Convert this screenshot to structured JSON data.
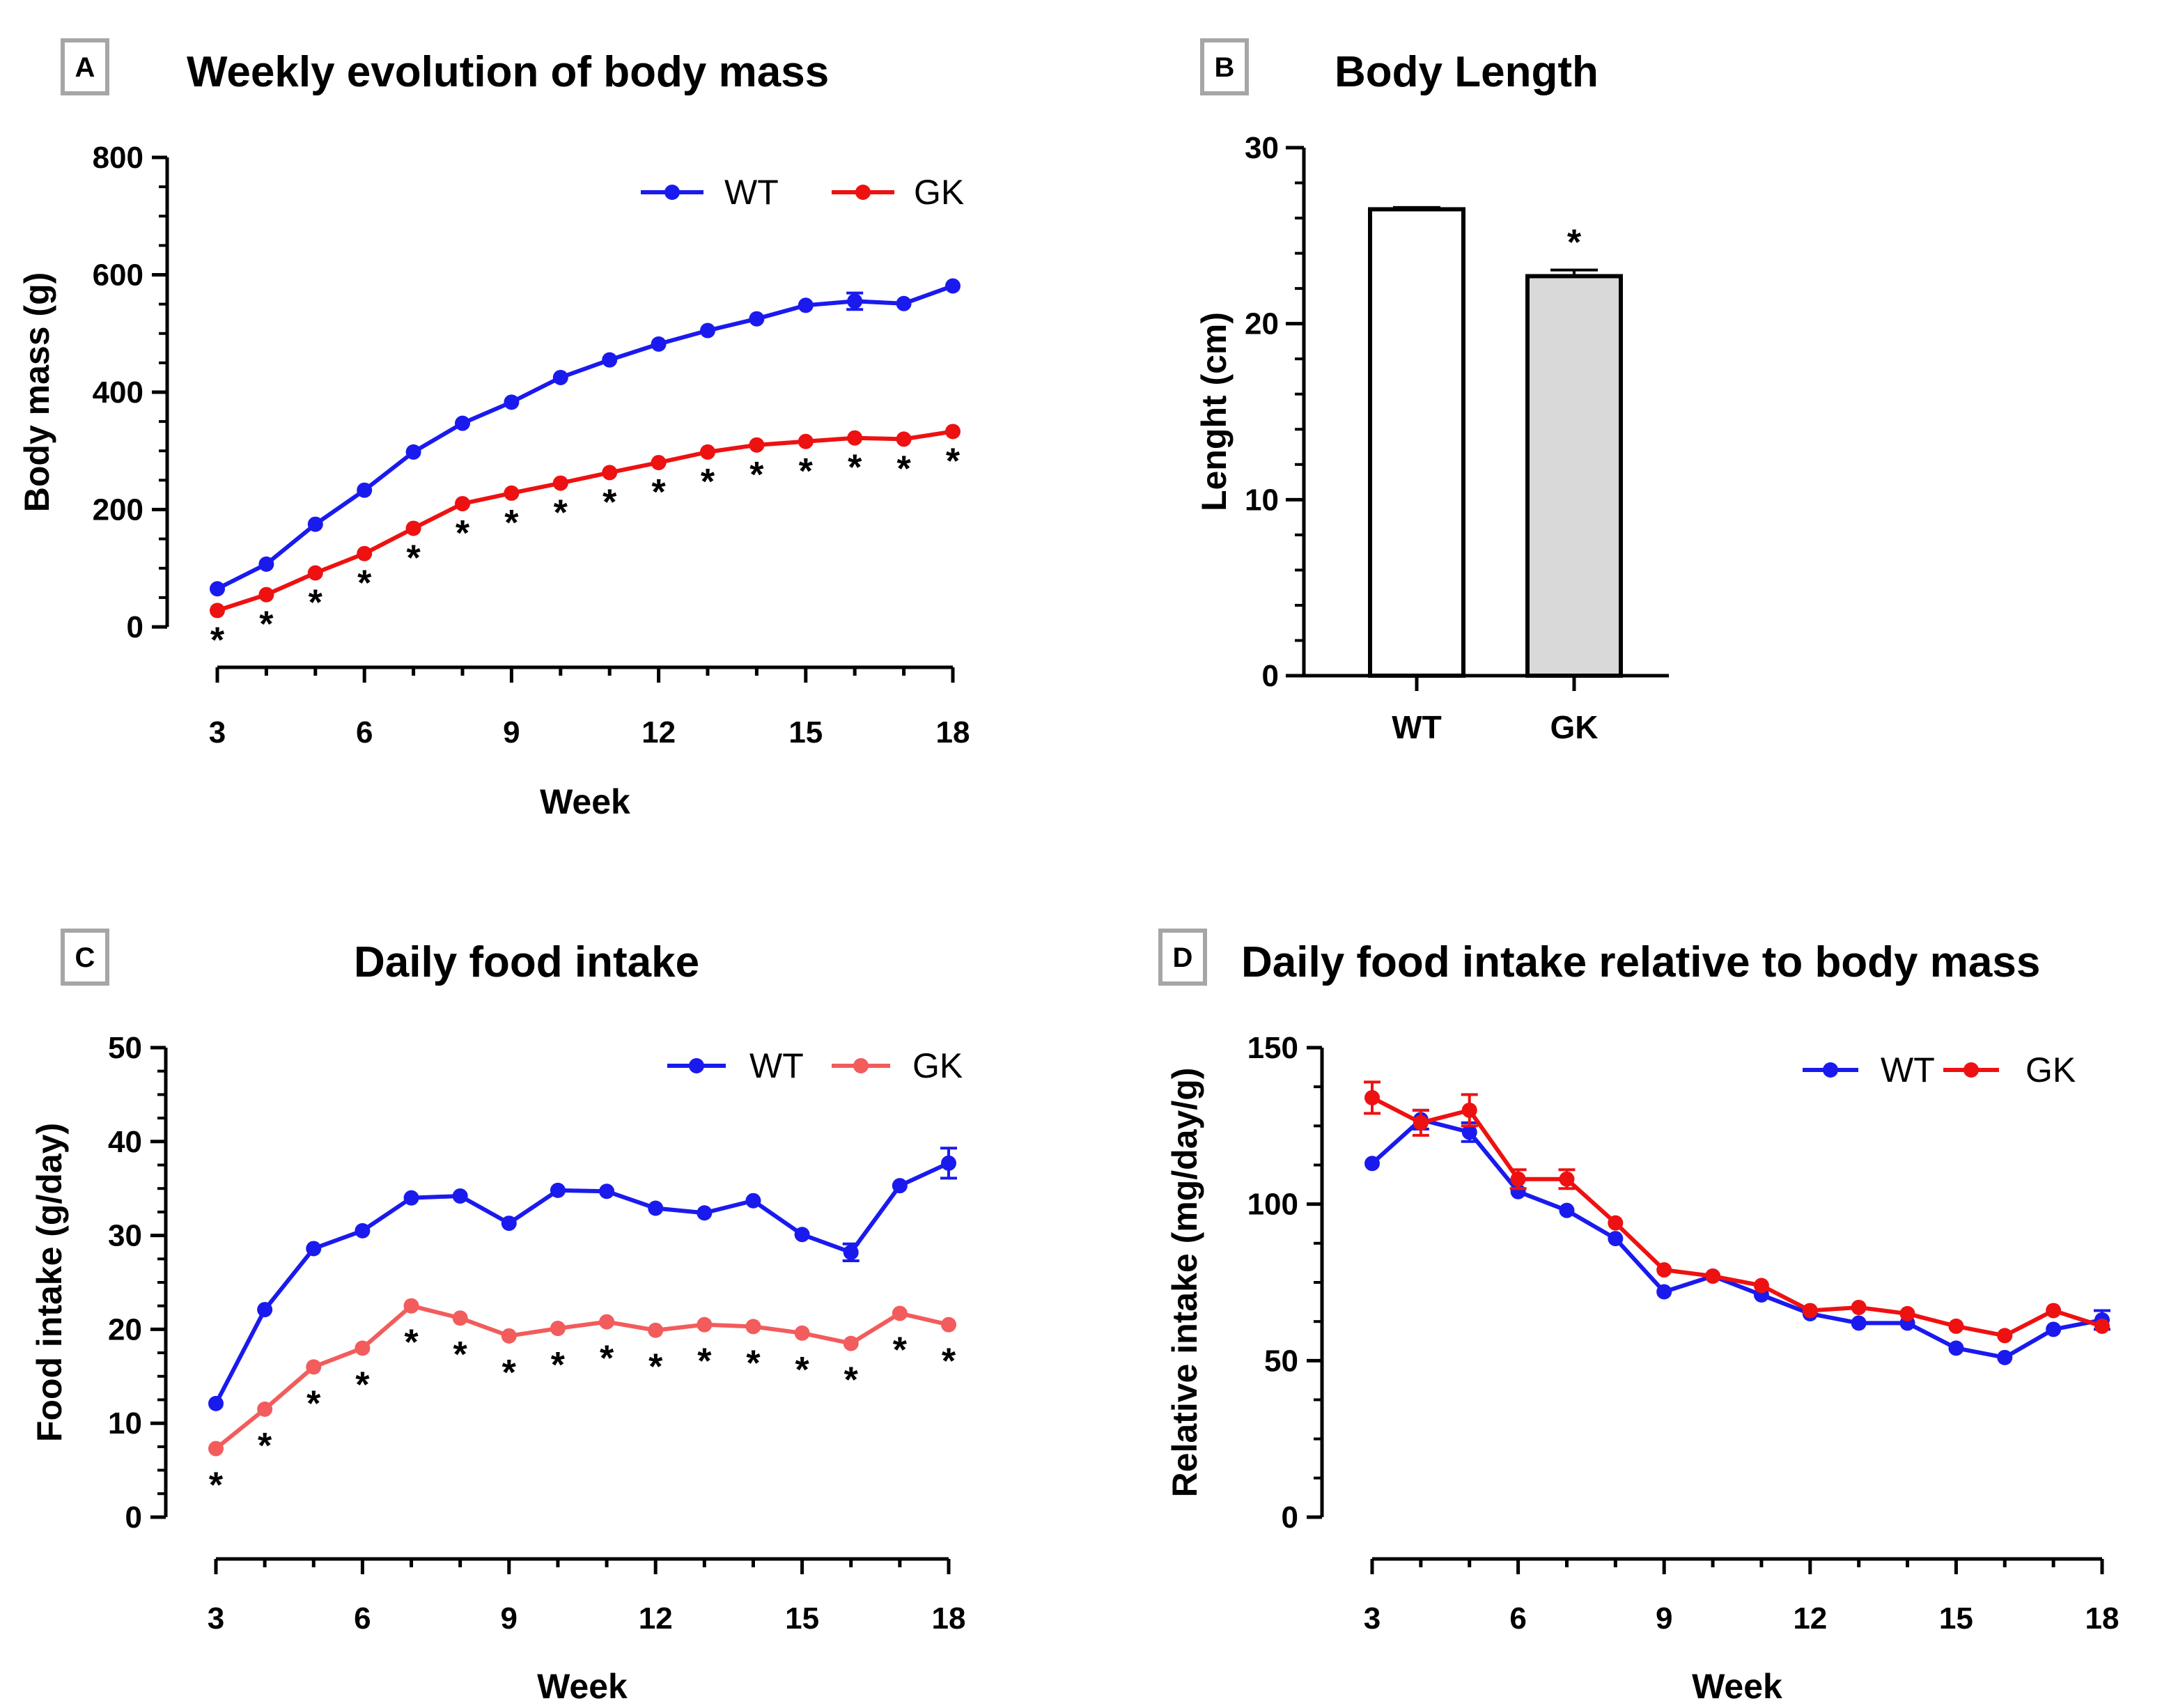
{
  "colors": {
    "wt": "#1a1aee",
    "gk": "#ee1111",
    "gk_light": "#f25c5c",
    "bar_gk_fill": "#d9d9d9",
    "box_border": "#a6a6a6"
  },
  "chart_data": [
    {
      "id": "A",
      "panel_label": "A",
      "type": "line",
      "title": "Weekly evolution of body mass",
      "xlabel": "Week",
      "ylabel": "Body mass (g)",
      "xlim": [
        3,
        18
      ],
      "ylim": [
        0,
        800
      ],
      "x_ticks": [
        3,
        6,
        9,
        12,
        15,
        18
      ],
      "y_ticks": [
        0,
        200,
        400,
        600,
        800
      ],
      "legend": "top-right",
      "x": [
        3,
        4,
        5,
        6,
        7,
        8,
        9,
        10,
        11,
        12,
        13,
        14,
        15,
        16,
        17,
        18
      ],
      "series": [
        {
          "name": "WT",
          "color": "#1a1aee",
          "values": [
            65,
            107,
            175,
            233,
            298,
            347,
            383,
            425,
            455,
            482,
            505,
            525,
            548,
            555,
            551,
            581
          ],
          "errors": [
            2,
            3,
            4,
            4,
            5,
            5,
            5,
            6,
            6,
            6,
            6,
            7,
            7,
            14,
            7,
            7
          ]
        },
        {
          "name": "GK",
          "color": "#ee1111",
          "values": [
            28,
            55,
            92,
            125,
            168,
            210,
            228,
            245,
            263,
            280,
            298,
            310,
            316,
            322,
            320,
            333
          ],
          "errors": [
            2,
            2,
            3,
            3,
            4,
            4,
            4,
            5,
            5,
            5,
            5,
            5,
            5,
            5,
            5,
            5
          ]
        }
      ],
      "star_weeks": [
        3,
        4,
        5,
        6,
        7,
        8,
        9,
        10,
        11,
        12,
        13,
        14,
        15,
        16,
        17,
        18
      ],
      "star_symbol": "*"
    },
    {
      "id": "B",
      "panel_label": "B",
      "type": "bar",
      "title": "Body Length",
      "xlabel": "",
      "ylabel": "Lenght (cm)",
      "ylim": [
        0,
        30
      ],
      "y_ticks": [
        0,
        10,
        20,
        30
      ],
      "categories": [
        "WT",
        "GK"
      ],
      "values": [
        26.5,
        22.7
      ],
      "errors": [
        0.1,
        0.35
      ],
      "fills": [
        "#ffffff",
        "#d9d9d9"
      ],
      "stars": [
        "",
        "*"
      ]
    },
    {
      "id": "C",
      "panel_label": "C",
      "type": "line",
      "title": "Daily food intake",
      "xlabel": "Week",
      "ylabel": "Food intake (g/day)",
      "xlim": [
        3,
        18
      ],
      "ylim": [
        0,
        50
      ],
      "x_ticks": [
        3,
        6,
        9,
        12,
        15,
        18
      ],
      "y_ticks": [
        0,
        10,
        20,
        30,
        40,
        50
      ],
      "legend": "top-right",
      "x": [
        3,
        4,
        5,
        6,
        7,
        8,
        9,
        10,
        11,
        12,
        13,
        14,
        15,
        16,
        17,
        18
      ],
      "series": [
        {
          "name": "WT",
          "color": "#1a1aee",
          "values": [
            12.1,
            22.1,
            28.6,
            30.5,
            34.0,
            34.2,
            31.3,
            34.8,
            34.7,
            32.9,
            32.4,
            33.7,
            30.1,
            28.2,
            35.3,
            37.7
          ],
          "errors": [
            0.3,
            0.4,
            0.4,
            0.4,
            0.4,
            0.4,
            0.4,
            0.4,
            0.4,
            0.4,
            0.4,
            0.4,
            0.4,
            0.9,
            0.5,
            1.6
          ]
        },
        {
          "name": "GK",
          "color": "#f25c5c",
          "values": [
            7.3,
            11.5,
            16.0,
            18.0,
            22.5,
            21.2,
            19.3,
            20.1,
            20.8,
            19.9,
            20.5,
            20.3,
            19.6,
            18.5,
            21.7,
            20.5
          ],
          "errors": [
            0.2,
            0.3,
            0.3,
            0.3,
            0.3,
            0.3,
            0.3,
            0.3,
            0.3,
            0.3,
            0.3,
            0.3,
            0.3,
            0.3,
            0.3,
            0.3
          ]
        }
      ],
      "star_weeks": [
        3,
        4,
        5,
        6,
        7,
        8,
        9,
        10,
        11,
        12,
        13,
        14,
        15,
        16,
        17,
        18
      ],
      "star_symbol": "*"
    },
    {
      "id": "D",
      "panel_label": "D",
      "type": "line",
      "title": "Daily food intake relative to body mass",
      "xlabel": "Week",
      "ylabel": "Relative intake (mg/day/g)",
      "xlim": [
        3,
        18
      ],
      "ylim": [
        0,
        150
      ],
      "x_ticks": [
        3,
        6,
        9,
        12,
        15,
        18
      ],
      "y_ticks": [
        0,
        50,
        100,
        150
      ],
      "legend": "top-right",
      "x": [
        3,
        4,
        5,
        6,
        7,
        8,
        9,
        10,
        11,
        12,
        13,
        14,
        15,
        16,
        17,
        18
      ],
      "series": [
        {
          "name": "WT",
          "color": "#1a1aee",
          "values": [
            113,
            127,
            123,
            104,
            98,
            89,
            72,
            77,
            71,
            65,
            62,
            62,
            54,
            51,
            60,
            63
          ],
          "errors": [
            1.5,
            3,
            3,
            1.5,
            1.5,
            1.5,
            1.5,
            1.5,
            1.5,
            1.5,
            1.5,
            1.5,
            1.5,
            1.5,
            1.5,
            3
          ]
        },
        {
          "name": "GK",
          "color": "#ee1111",
          "values": [
            134,
            126,
            130,
            108,
            108,
            94,
            79,
            77,
            74,
            66,
            67,
            65,
            61,
            58,
            66,
            61
          ],
          "errors": [
            5,
            4,
            5,
            3,
            3,
            2,
            2,
            2,
            2,
            2,
            2,
            2,
            2,
            2,
            2,
            2
          ]
        }
      ],
      "star_weeks": [],
      "star_symbol": "*"
    }
  ]
}
